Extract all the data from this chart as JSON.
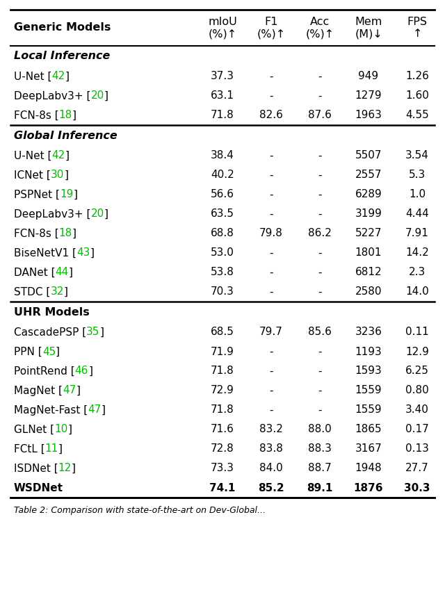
{
  "sections": [
    {
      "header": "Local Inference",
      "header_style": "bold_italic",
      "rows": [
        {
          "model": "U-Net",
          "ref": "42",
          "miou": "37.3",
          "f1": "-",
          "acc": "-",
          "mem": "949",
          "fps": "1.26",
          "bold": false
        },
        {
          "model": "DeepLabv3+",
          "ref": "20",
          "miou": "63.1",
          "f1": "-",
          "acc": "-",
          "mem": "1279",
          "fps": "1.60",
          "bold": false
        },
        {
          "model": "FCN-8s",
          "ref": "18",
          "miou": "71.8",
          "f1": "82.6",
          "acc": "87.6",
          "mem": "1963",
          "fps": "4.55",
          "bold": false
        }
      ]
    },
    {
      "header": "Global Inference",
      "header_style": "bold_italic",
      "rows": [
        {
          "model": "U-Net",
          "ref": "42",
          "miou": "38.4",
          "f1": "-",
          "acc": "-",
          "mem": "5507",
          "fps": "3.54",
          "bold": false
        },
        {
          "model": "ICNet",
          "ref": "30",
          "miou": "40.2",
          "f1": "-",
          "acc": "-",
          "mem": "2557",
          "fps": "5.3",
          "bold": false
        },
        {
          "model": "PSPNet",
          "ref": "19",
          "miou": "56.6",
          "f1": "-",
          "acc": "-",
          "mem": "6289",
          "fps": "1.0",
          "bold": false
        },
        {
          "model": "DeepLabv3+",
          "ref": "20",
          "miou": "63.5",
          "f1": "-",
          "acc": "-",
          "mem": "3199",
          "fps": "4.44",
          "bold": false
        },
        {
          "model": "FCN-8s",
          "ref": "18",
          "miou": "68.8",
          "f1": "79.8",
          "acc": "86.2",
          "mem": "5227",
          "fps": "7.91",
          "bold": false
        },
        {
          "model": "BiseNetV1",
          "ref": "43",
          "miou": "53.0",
          "f1": "-",
          "acc": "-",
          "mem": "1801",
          "fps": "14.2",
          "bold": false
        },
        {
          "model": "DANet",
          "ref": "44",
          "miou": "53.8",
          "f1": "-",
          "acc": "-",
          "mem": "6812",
          "fps": "2.3",
          "bold": false
        },
        {
          "model": "STDC",
          "ref": "32",
          "miou": "70.3",
          "f1": "-",
          "acc": "-",
          "mem": "2580",
          "fps": "14.0",
          "bold": false
        }
      ]
    },
    {
      "header": "UHR Models",
      "header_style": "bold",
      "rows": [
        {
          "model": "CascadePSP",
          "ref": "35",
          "miou": "68.5",
          "f1": "79.7",
          "acc": "85.6",
          "mem": "3236",
          "fps": "0.11",
          "bold": false
        },
        {
          "model": "PPN",
          "ref": "45",
          "miou": "71.9",
          "f1": "-",
          "acc": "-",
          "mem": "1193",
          "fps": "12.9",
          "bold": false
        },
        {
          "model": "PointRend",
          "ref": "46",
          "miou": "71.8",
          "f1": "-",
          "acc": "-",
          "mem": "1593",
          "fps": "6.25",
          "bold": false
        },
        {
          "model": "MagNet",
          "ref": "47",
          "miou": "72.9",
          "f1": "-",
          "acc": "-",
          "mem": "1559",
          "fps": "0.80",
          "bold": false
        },
        {
          "model": "MagNet-Fast",
          "ref": "47",
          "miou": "71.8",
          "f1": "-",
          "acc": "-",
          "mem": "1559",
          "fps": "3.40",
          "bold": false
        },
        {
          "model": "GLNet",
          "ref": "10",
          "miou": "71.6",
          "f1": "83.2",
          "acc": "88.0",
          "mem": "1865",
          "fps": "0.17",
          "bold": false
        },
        {
          "model": "FCtL",
          "ref": "11",
          "miou": "72.8",
          "f1": "83.8",
          "acc": "88.3",
          "mem": "3167",
          "fps": "0.13",
          "bold": false
        },
        {
          "model": "ISDNet",
          "ref": "12",
          "miou": "73.3",
          "f1": "84.0",
          "acc": "88.7",
          "mem": "1948",
          "fps": "27.7",
          "bold": false
        },
        {
          "model": "WSDNet",
          "ref": "",
          "miou": "74.1",
          "f1": "85.2",
          "acc": "89.1",
          "mem": "1876",
          "fps": "30.3",
          "bold": true
        }
      ]
    }
  ],
  "col_header": [
    "Generic Models",
    "mIoU\n(%)↑",
    "F1\n(%)↑",
    "Acc\n(%)↑",
    "Mem\n(M)↓",
    "FPS\n↑"
  ],
  "ref_color": "#00bb00",
  "caption": "Table 2: Comparison with state-of-the-art on Dev-Global...",
  "bg_color": "#ffffff"
}
